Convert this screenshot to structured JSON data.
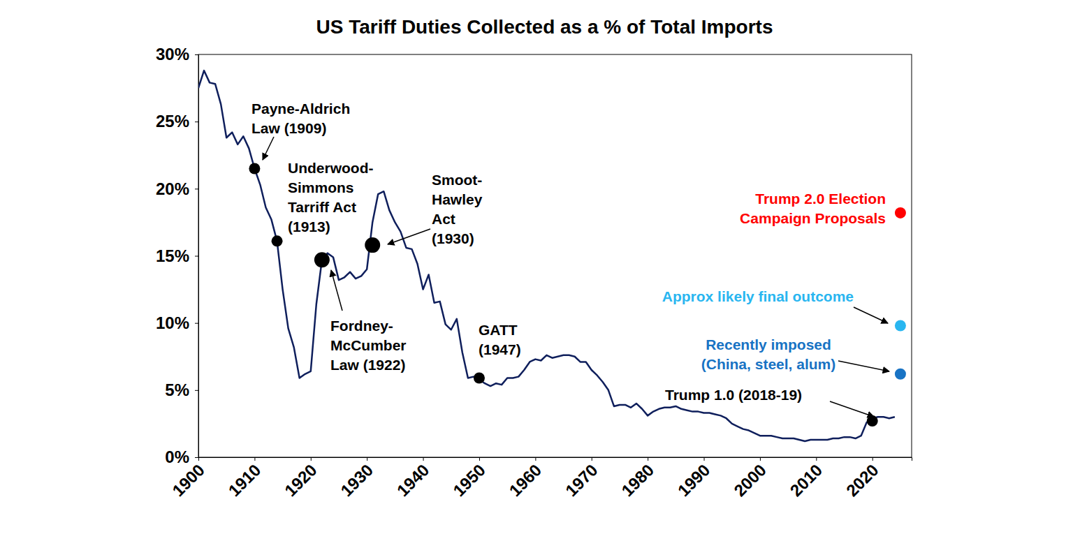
{
  "chart_data": {
    "type": "line",
    "title": "US Tariff Duties Collected as a % of Total Imports",
    "x": [
      1900,
      1901,
      1902,
      1903,
      1904,
      1905,
      1906,
      1907,
      1908,
      1909,
      1910,
      1911,
      1912,
      1913,
      1914,
      1915,
      1916,
      1917,
      1918,
      1919,
      1920,
      1921,
      1922,
      1923,
      1924,
      1925,
      1926,
      1927,
      1928,
      1929,
      1930,
      1931,
      1932,
      1933,
      1934,
      1935,
      1936,
      1937,
      1938,
      1939,
      1940,
      1941,
      1942,
      1943,
      1944,
      1945,
      1946,
      1947,
      1948,
      1949,
      1950,
      1951,
      1952,
      1953,
      1954,
      1955,
      1956,
      1957,
      1958,
      1959,
      1960,
      1961,
      1962,
      1963,
      1964,
      1965,
      1966,
      1967,
      1968,
      1969,
      1970,
      1971,
      1972,
      1973,
      1974,
      1975,
      1976,
      1977,
      1978,
      1979,
      1980,
      1981,
      1982,
      1983,
      1984,
      1985,
      1986,
      1987,
      1988,
      1989,
      1990,
      1991,
      1992,
      1993,
      1994,
      1995,
      1996,
      1997,
      1998,
      1999,
      2000,
      2001,
      2002,
      2003,
      2004,
      2005,
      2006,
      2007,
      2008,
      2009,
      2010,
      2011,
      2012,
      2013,
      2014,
      2015,
      2016,
      2017,
      2018,
      2019,
      2020,
      2021,
      2022,
      2023,
      2024
    ],
    "series": [
      {
        "color": "#0f1f5c",
        "values": [
          27.5,
          28.8,
          27.9,
          27.8,
          26.3,
          23.8,
          24.2,
          23.3,
          23.9,
          23.0,
          21.5,
          20.3,
          18.6,
          17.7,
          16.1,
          12.5,
          9.6,
          8.2,
          5.9,
          6.2,
          6.4,
          11.4,
          14.7,
          15.2,
          14.9,
          13.2,
          13.4,
          13.8,
          13.3,
          13.5,
          14.0,
          17.5,
          19.6,
          19.8,
          18.4,
          17.5,
          16.8,
          15.6,
          15.5,
          14.4,
          12.5,
          13.6,
          11.5,
          11.6,
          9.9,
          9.5,
          10.3,
          7.8,
          5.9,
          6.0,
          5.8,
          5.5,
          5.3,
          5.5,
          5.4,
          5.9,
          5.9,
          6.0,
          6.5,
          7.1,
          7.3,
          7.2,
          7.6,
          7.4,
          7.5,
          7.6,
          7.6,
          7.5,
          7.1,
          7.1,
          6.5,
          6.1,
          5.6,
          5.0,
          3.8,
          3.9,
          3.9,
          3.7,
          4.0,
          3.6,
          3.1,
          3.4,
          3.6,
          3.7,
          3.7,
          3.8,
          3.6,
          3.5,
          3.4,
          3.4,
          3.3,
          3.3,
          3.2,
          3.1,
          2.9,
          2.5,
          2.3,
          2.1,
          2.0,
          1.8,
          1.6,
          1.6,
          1.6,
          1.5,
          1.4,
          1.4,
          1.4,
          1.3,
          1.2,
          1.3,
          1.3,
          1.3,
          1.3,
          1.4,
          1.4,
          1.5,
          1.5,
          1.4,
          1.6,
          2.6,
          2.9,
          3.0,
          3.0,
          2.9,
          3.0
        ]
      }
    ],
    "xlim": [
      1900,
      2027
    ],
    "xticks": [
      1900,
      1910,
      1920,
      1930,
      1940,
      1950,
      1960,
      1970,
      1980,
      1990,
      2000,
      2010,
      2020
    ],
    "ylim": [
      0,
      30
    ],
    "yticks": [
      {
        "value": 0,
        "label": "0%"
      },
      {
        "value": 5,
        "label": "5%"
      },
      {
        "value": 10,
        "label": "10%"
      },
      {
        "value": 15,
        "label": "15%"
      },
      {
        "value": 20,
        "label": "20%"
      },
      {
        "value": 25,
        "label": "25%"
      },
      {
        "value": 30,
        "label": "30%"
      }
    ],
    "grid": false,
    "annotations": [
      {
        "text": [
          "Payne-Aldrich",
          "Law (1909)"
        ],
        "x": 1910,
        "y": 21.5,
        "color": "#000000"
      },
      {
        "text": [
          "Underwood-",
          "Simmons",
          "Tarriff Act",
          "(1913)"
        ],
        "x": 1914,
        "y": 16.1,
        "color": "#000000"
      },
      {
        "text": [
          "Fordney-",
          "McCumber",
          "Law (1922)"
        ],
        "x": 1922,
        "y": 14.7,
        "color": "#000000"
      },
      {
        "text": [
          "Smoot-",
          "Hawley",
          "Act",
          "(1930)"
        ],
        "x": 1931,
        "y": 15.8,
        "color": "#000000"
      },
      {
        "text": [
          "GATT",
          "(1947)"
        ],
        "x": 1950,
        "y": 5.9,
        "color": "#000000"
      },
      {
        "text": [
          "Trump 1.0 (2018-19)"
        ],
        "x": 2020,
        "y": 2.7,
        "color": "#000000"
      },
      {
        "text": [
          "Trump 2.0 Election",
          "Campaign Proposals"
        ],
        "x": 2025,
        "y": 18.2,
        "color": "#ff0000"
      },
      {
        "text": [
          "Approx likely final outcome"
        ],
        "x": 2025,
        "y": 9.8,
        "color": "#29b6f0"
      },
      {
        "text": [
          "Recently imposed",
          "(China, steel, alum)"
        ],
        "x": 2025,
        "y": 6.2,
        "color": "#1873c4"
      }
    ]
  }
}
